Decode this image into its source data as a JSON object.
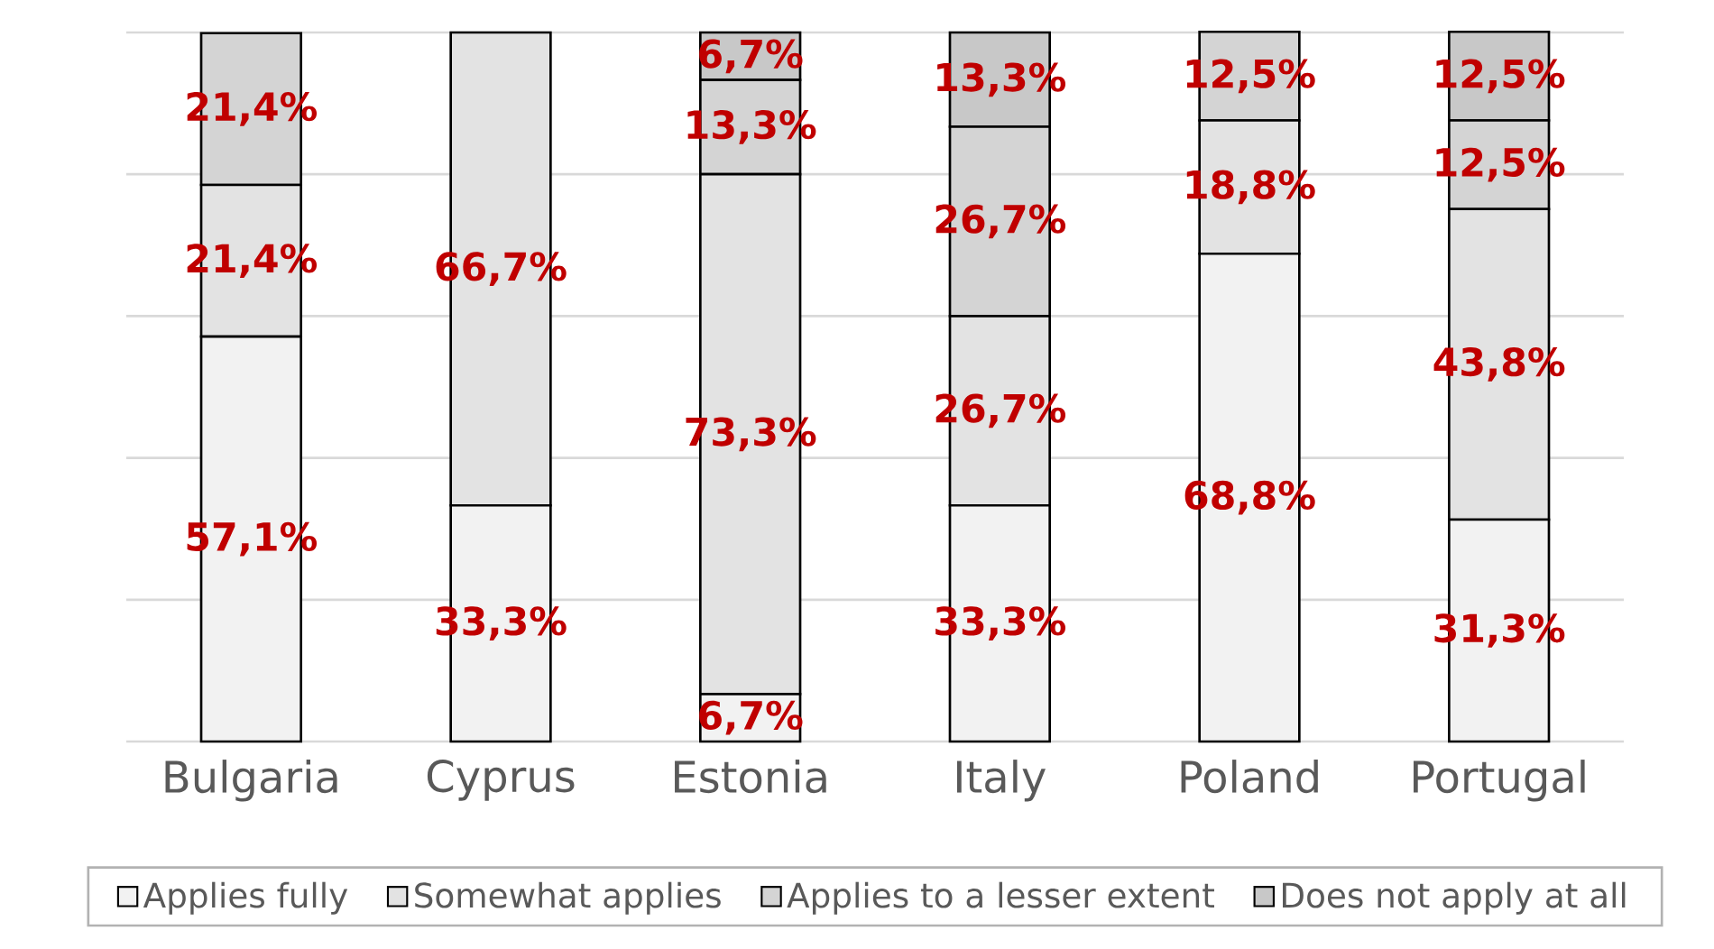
{
  "chart_data": {
    "type": "bar",
    "stacked": true,
    "categories": [
      "Bulgaria",
      "Cyprus",
      "Estonia",
      "Italy",
      "Poland",
      "Portugal"
    ],
    "series": [
      {
        "name": "Applies fully",
        "color": "#f2f2f2",
        "values": [
          57.1,
          33.3,
          6.7,
          33.3,
          68.8,
          31.3
        ],
        "value_labels": [
          "57,1%",
          "33,3%",
          "6,7%",
          "33,3%",
          "68,8%",
          "31,3%"
        ]
      },
      {
        "name": "Somewhat applies",
        "color": "#e3e3e3",
        "values": [
          21.4,
          66.7,
          73.3,
          26.7,
          18.8,
          43.8
        ],
        "value_labels": [
          "21,4%",
          "66,7%",
          "73,3%",
          "26,7%",
          "18,8%",
          "43,8%"
        ]
      },
      {
        "name": "Applies to a lesser extent",
        "color": "#d4d4d4",
        "values": [
          21.4,
          0,
          13.3,
          26.7,
          12.5,
          12.5
        ],
        "value_labels": [
          "21,4%",
          null,
          "13,3%",
          "26,7%",
          "12,5%",
          "12,5%"
        ]
      },
      {
        "name": "Does not apply at all",
        "color": "#c8c8c8",
        "values": [
          0,
          0,
          6.7,
          13.3,
          0,
          12.5
        ],
        "value_labels": [
          null,
          null,
          "6,7%",
          "13,3%",
          null,
          "12,5%"
        ]
      }
    ],
    "ylim": [
      0,
      100
    ],
    "yticks": [
      {
        "value": 0,
        "label": null
      },
      {
        "value": 20,
        "label": null
      },
      {
        "value": 40,
        "label": null
      },
      {
        "value": 60,
        "label": null
      },
      {
        "value": 80,
        "label": null
      },
      {
        "value": 100,
        "label": null
      }
    ],
    "grid": "y",
    "legend": "bottom",
    "tick_labels": "x"
  }
}
